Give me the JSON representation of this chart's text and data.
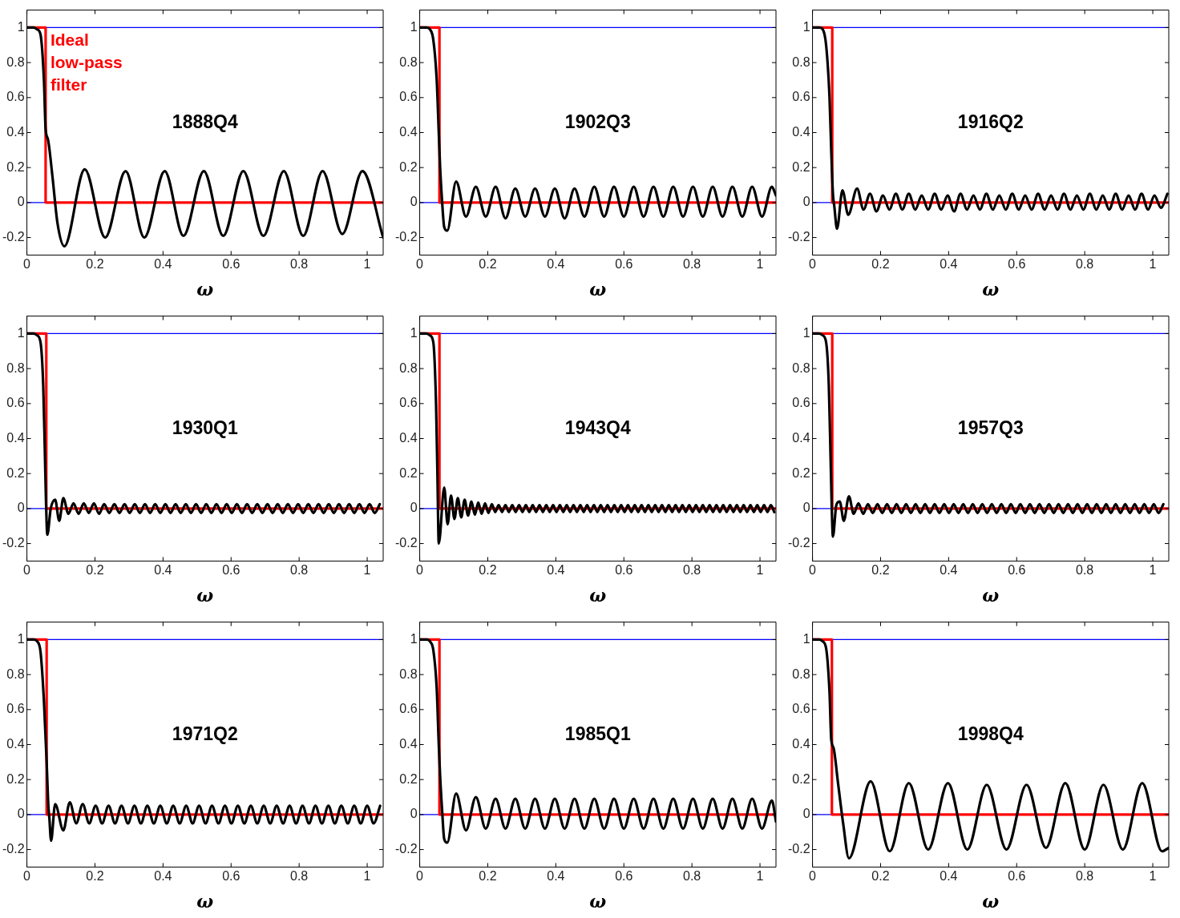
{
  "chart_data": [
    {
      "type": "line",
      "title": "1888Q4",
      "xlabel": "ω",
      "xlim": [
        0,
        1.047
      ],
      "ylim": [
        -0.3,
        1.1
      ],
      "xticks": [
        0,
        0.2,
        0.4,
        0.6,
        0.8,
        1
      ],
      "yticks": [
        -0.2,
        0,
        0.2,
        0.4,
        0.6,
        0.8,
        1
      ],
      "ref_lines": [
        {
          "axis": "y",
          "value": 0,
          "color": "#0000ff"
        },
        {
          "axis": "y",
          "value": 1,
          "color": "#0000ff"
        }
      ],
      "series": [
        {
          "color": "#000000",
          "x": [
            0,
            0.02,
            0.03,
            0.04,
            0.05,
            0.055,
            0.062,
            0.075,
            0.09,
            0.11,
            0.17,
            0.23,
            0.29,
            0.345,
            0.405,
            0.46,
            0.52,
            0.577,
            0.636,
            0.695,
            0.755,
            0.812,
            0.869,
            0.927,
            0.986,
            1.047
          ],
          "values": [
            1,
            1,
            0.99,
            0.96,
            0.7,
            0.42,
            0.36,
            0.15,
            -0.12,
            -0.25,
            0.19,
            -0.2,
            0.18,
            -0.2,
            0.18,
            -0.19,
            0.18,
            -0.19,
            0.18,
            -0.19,
            0.18,
            -0.19,
            0.18,
            -0.18,
            0.18,
            -0.2
          ]
        },
        {
          "name": "Ideal low-pass filter",
          "color": "#ff0000",
          "x": [
            0,
            0.055,
            0.055,
            1.047
          ],
          "values": [
            1,
            1,
            0,
            0
          ]
        }
      ]
    },
    {
      "type": "line",
      "title": "1902Q3",
      "xlabel": "ω",
      "xlim": [
        0,
        1.047
      ],
      "ylim": [
        -0.3,
        1.1
      ],
      "xticks": [
        0,
        0.2,
        0.4,
        0.6,
        0.8,
        1
      ],
      "yticks": [
        -0.2,
        0,
        0.2,
        0.4,
        0.6,
        0.8,
        1
      ],
      "ref_lines": [
        {
          "axis": "y",
          "value": 0,
          "color": "#0000ff"
        },
        {
          "axis": "y",
          "value": 1,
          "color": "#0000ff"
        }
      ],
      "series": [
        {
          "color": "#000000",
          "x": [
            0,
            0.02,
            0.03,
            0.04,
            0.05,
            0.056,
            0.06,
            0.066,
            0.072,
            0.081,
            0.107,
            0.136,
            0.165,
            0.194,
            0.223,
            0.252,
            0.281,
            0.31,
            0.339,
            0.368,
            0.397,
            0.426,
            0.455,
            0.484,
            0.513,
            0.542,
            0.571,
            0.6,
            0.629,
            0.658,
            0.687,
            0.716,
            0.745,
            0.774,
            0.803,
            0.832,
            0.861,
            0.89,
            0.919,
            0.948,
            0.977,
            1.006,
            1.035,
            1.047
          ],
          "values": [
            1,
            1,
            0.99,
            0.93,
            0.7,
            0.4,
            0.2,
            0,
            -0.14,
            -0.16,
            0.12,
            -0.08,
            0.09,
            -0.08,
            0.09,
            -0.09,
            0.08,
            -0.08,
            0.08,
            -0.08,
            0.08,
            -0.09,
            0.08,
            -0.08,
            0.09,
            -0.08,
            0.09,
            -0.08,
            0.09,
            -0.08,
            0.09,
            -0.08,
            0.09,
            -0.08,
            0.09,
            -0.08,
            0.09,
            -0.08,
            0.09,
            -0.08,
            0.09,
            -0.08,
            0.09,
            0.04
          ]
        },
        {
          "color": "#ff0000",
          "x": [
            0,
            0.058,
            0.058,
            1.047
          ],
          "values": [
            1,
            1,
            0,
            0
          ]
        }
      ]
    },
    {
      "type": "line",
      "title": "1916Q2",
      "xlabel": "ω",
      "xlim": [
        0,
        1.047
      ],
      "ylim": [
        -0.3,
        1.1
      ],
      "xticks": [
        0,
        0.2,
        0.4,
        0.6,
        0.8,
        1
      ],
      "yticks": [
        -0.2,
        0,
        0.2,
        0.4,
        0.6,
        0.8,
        1
      ],
      "ref_lines": [
        {
          "axis": "y",
          "value": 0,
          "color": "#0000ff"
        },
        {
          "axis": "y",
          "value": 1,
          "color": "#0000ff"
        }
      ],
      "series": [
        {
          "color": "#000000",
          "x": [
            0,
            0.02,
            0.03,
            0.04,
            0.05,
            0.055,
            0.06,
            0.064,
            0.072,
            0.088,
            0.105,
            0.131,
            0.15,
            0.169,
            0.188,
            0.207,
            0.226,
            0.245,
            0.264,
            0.283,
            0.302,
            0.321,
            0.34,
            0.359,
            0.378,
            0.397,
            0.416,
            0.435,
            0.454,
            0.473,
            0.492,
            0.511,
            0.53,
            0.549,
            0.568,
            0.587,
            0.606,
            0.625,
            0.644,
            0.663,
            0.682,
            0.701,
            0.72,
            0.739,
            0.758,
            0.777,
            0.796,
            0.815,
            0.834,
            0.853,
            0.872,
            0.891,
            0.91,
            0.929,
            0.948,
            0.967,
            0.986,
            1.005,
            1.024,
            1.043
          ],
          "values": [
            1,
            1,
            0.99,
            0.9,
            0.6,
            0.3,
            0.05,
            -0.02,
            -0.15,
            0.07,
            -0.07,
            0.08,
            -0.04,
            0.05,
            -0.05,
            0.04,
            -0.04,
            0.05,
            -0.04,
            0.05,
            -0.04,
            0.04,
            -0.04,
            0.05,
            -0.04,
            0.04,
            -0.05,
            0.05,
            -0.04,
            0.04,
            -0.04,
            0.05,
            -0.04,
            0.04,
            -0.04,
            0.05,
            -0.04,
            0.04,
            -0.04,
            0.05,
            -0.04,
            0.04,
            -0.04,
            0.05,
            -0.04,
            0.04,
            -0.04,
            0.05,
            -0.04,
            0.04,
            -0.04,
            0.05,
            -0.04,
            0.04,
            -0.04,
            0.05,
            -0.04,
            0.04,
            -0.03,
            0.05
          ]
        },
        {
          "color": "#ff0000",
          "x": [
            0,
            0.058,
            0.058,
            1.047
          ],
          "values": [
            1,
            1,
            0,
            0
          ]
        }
      ]
    },
    {
      "type": "line",
      "title": "1930Q1",
      "xlabel": "ω",
      "xlim": [
        0,
        1.047
      ],
      "ylim": [
        -0.3,
        1.1
      ],
      "xticks": [
        0,
        0.2,
        0.4,
        0.6,
        0.8,
        1
      ],
      "yticks": [
        -0.2,
        0,
        0.2,
        0.4,
        0.6,
        0.8,
        1
      ],
      "ref_lines": [
        {
          "axis": "y",
          "value": 0,
          "color": "#0000ff"
        },
        {
          "axis": "y",
          "value": 1,
          "color": "#0000ff"
        }
      ],
      "series": [
        {
          "color": "#000000",
          "x": [
            0,
            0.02,
            0.03,
            0.04,
            0.048,
            0.053,
            0.056,
            0.06,
            0.07,
            0.083,
            0.095,
            0.107,
            0.122,
            0.137,
            0.152,
            0.167,
            0.182,
            0.197,
            0.212,
            0.227,
            0.242,
            0.257,
            0.272,
            0.287,
            0.302,
            0.317,
            0.332,
            0.347,
            0.362,
            0.377,
            0.392,
            0.407,
            0.422,
            0.437,
            0.452,
            0.467,
            0.482,
            0.497,
            0.512,
            0.527,
            0.542,
            0.557,
            0.572,
            0.587,
            0.602,
            0.617,
            0.632,
            0.647,
            0.662,
            0.677,
            0.692,
            0.707,
            0.722,
            0.737,
            0.752,
            0.767,
            0.782,
            0.797,
            0.812,
            0.827,
            0.842,
            0.857,
            0.872,
            0.887,
            0.902,
            0.917,
            0.932,
            0.947,
            0.962,
            0.977,
            0.992,
            1.007,
            1.022,
            1.037
          ],
          "values": [
            1,
            1,
            0.99,
            0.95,
            0.7,
            0.3,
            0.05,
            -0.15,
            0,
            0.05,
            -0.07,
            0.06,
            -0.03,
            0.03,
            -0.03,
            0.03,
            -0.025,
            0.03,
            -0.03,
            0.025,
            -0.025,
            0.025,
            -0.025,
            0.025,
            -0.025,
            0.025,
            -0.025,
            0.025,
            -0.025,
            0.025,
            -0.025,
            0.025,
            -0.025,
            0.025,
            -0.025,
            0.025,
            -0.025,
            0.025,
            -0.025,
            0.025,
            -0.025,
            0.025,
            -0.025,
            0.025,
            -0.025,
            0.025,
            -0.025,
            0.025,
            -0.025,
            0.025,
            -0.025,
            0.025,
            -0.025,
            0.025,
            -0.025,
            0.025,
            -0.025,
            0.025,
            -0.025,
            0.025,
            -0.025,
            0.025,
            -0.025,
            0.025,
            -0.025,
            0.025,
            -0.025,
            0.025,
            -0.025,
            0.025,
            -0.025,
            0.025,
            -0.025,
            0.025
          ]
        },
        {
          "color": "#ff0000",
          "x": [
            0,
            0.057,
            0.057,
            1.047
          ],
          "values": [
            1,
            1,
            0,
            0
          ]
        }
      ]
    },
    {
      "type": "line",
      "title": "1943Q4",
      "xlabel": "ω",
      "xlim": [
        0,
        1.047
      ],
      "ylim": [
        -0.3,
        1.1
      ],
      "xticks": [
        0,
        0.2,
        0.4,
        0.6,
        0.8,
        1
      ],
      "yticks": [
        -0.2,
        0,
        0.2,
        0.4,
        0.6,
        0.8,
        1
      ],
      "ref_lines": [
        {
          "axis": "y",
          "value": 0,
          "color": "#0000ff"
        },
        {
          "axis": "y",
          "value": 1,
          "color": "#0000ff"
        }
      ],
      "series": [
        {
          "color": "#000000",
          "x": [
            0,
            0.02,
            0.03,
            0.04,
            0.048,
            0.052,
            0.056,
            0.072,
            0.082,
            0.092,
            0.102,
            0.112,
            0.122,
            0.132,
            0.142,
            0.152,
            0.162,
            0.172,
            0.182,
            0.192,
            0.202,
            0.212,
            0.222,
            0.232,
            0.242,
            0.252,
            0.262,
            0.272,
            0.282,
            0.292,
            0.302,
            0.312,
            0.322,
            0.332,
            0.342,
            0.352,
            0.362,
            0.372,
            0.382,
            0.392,
            0.402,
            0.412,
            0.422,
            0.432,
            0.442,
            0.452,
            0.462,
            0.472,
            0.482,
            0.492,
            0.502,
            0.512,
            0.522,
            0.532,
            0.542,
            0.552,
            0.562,
            0.572,
            0.582,
            0.592,
            0.602,
            0.612,
            0.622,
            0.632,
            0.642,
            0.652,
            0.662,
            0.672,
            0.682,
            0.692,
            0.702,
            0.712,
            0.722,
            0.732,
            0.742,
            0.752,
            0.762,
            0.772,
            0.782,
            0.792,
            0.802,
            0.812,
            0.822,
            0.832,
            0.842,
            0.852,
            0.862,
            0.872,
            0.882,
            0.892,
            0.902,
            0.912,
            0.922,
            0.932,
            0.942,
            0.952,
            0.962,
            0.972,
            0.982,
            0.992,
            1.002,
            1.012,
            1.022,
            1.032,
            1.042
          ],
          "values": [
            1,
            1,
            0.99,
            0.95,
            0.6,
            0.2,
            -0.2,
            0.12,
            -0.09,
            0.075,
            -0.06,
            0.06,
            -0.05,
            0.05,
            -0.04,
            0.04,
            -0.035,
            0.035,
            -0.03,
            0.03,
            -0.025,
            0.025,
            -0.02,
            0.02,
            -0.02,
            0.02,
            -0.02,
            0.02,
            -0.02,
            0.02,
            -0.02,
            0.02,
            -0.02,
            0.02,
            -0.02,
            0.02,
            -0.02,
            0.02,
            -0.02,
            0.02,
            -0.02,
            0.02,
            -0.02,
            0.02,
            -0.02,
            0.02,
            -0.02,
            0.02,
            -0.02,
            0.02,
            -0.02,
            0.02,
            -0.02,
            0.02,
            -0.02,
            0.02,
            -0.02,
            0.02,
            -0.02,
            0.02,
            -0.02,
            0.02,
            -0.02,
            0.02,
            -0.02,
            0.02,
            -0.02,
            0.02,
            -0.02,
            0.02,
            -0.02,
            0.02,
            -0.02,
            0.02,
            -0.02,
            0.02,
            -0.02,
            0.02,
            -0.02,
            0.02,
            -0.02,
            0.02,
            -0.02,
            0.02,
            -0.02,
            0.02,
            -0.02,
            0.02,
            -0.02,
            0.02,
            -0.02,
            0.02,
            -0.02,
            0.02,
            -0.02,
            0.02,
            -0.02,
            0.02,
            -0.02,
            0.02,
            -0.02,
            0.02,
            -0.02,
            0.02,
            -0.02
          ]
        },
        {
          "color": "#ff0000",
          "x": [
            0,
            0.058,
            0.058,
            1.047
          ],
          "values": [
            1,
            1,
            0,
            0
          ]
        }
      ]
    },
    {
      "type": "line",
      "title": "1957Q3",
      "xlabel": "ω",
      "xlim": [
        0,
        1.047
      ],
      "ylim": [
        -0.3,
        1.1
      ],
      "xticks": [
        0,
        0.2,
        0.4,
        0.6,
        0.8,
        1
      ],
      "yticks": [
        -0.2,
        0,
        0.2,
        0.4,
        0.6,
        0.8,
        1
      ],
      "ref_lines": [
        {
          "axis": "y",
          "value": 0,
          "color": "#0000ff"
        },
        {
          "axis": "y",
          "value": 1,
          "color": "#0000ff"
        }
      ],
      "series": [
        {
          "color": "#000000",
          "x": [
            0,
            0.02,
            0.03,
            0.04,
            0.048,
            0.053,
            0.056,
            0.06,
            0.07,
            0.08,
            0.092,
            0.107,
            0.121,
            0.135,
            0.149,
            0.163,
            0.177,
            0.191,
            0.205,
            0.219,
            0.233,
            0.247,
            0.261,
            0.275,
            0.289,
            0.303,
            0.317,
            0.331,
            0.345,
            0.359,
            0.373,
            0.387,
            0.401,
            0.415,
            0.429,
            0.443,
            0.457,
            0.471,
            0.485,
            0.499,
            0.513,
            0.527,
            0.541,
            0.555,
            0.569,
            0.583,
            0.597,
            0.611,
            0.625,
            0.639,
            0.653,
            0.667,
            0.681,
            0.695,
            0.709,
            0.723,
            0.737,
            0.751,
            0.765,
            0.779,
            0.793,
            0.807,
            0.821,
            0.835,
            0.849,
            0.863,
            0.877,
            0.891,
            0.905,
            0.919,
            0.933,
            0.947,
            0.961,
            0.975,
            0.989,
            1.003,
            1.017,
            1.031
          ],
          "values": [
            1,
            1,
            0.99,
            0.95,
            0.7,
            0.3,
            0.05,
            -0.16,
            0.02,
            0.04,
            -0.07,
            0.07,
            -0.03,
            0.03,
            -0.03,
            0.025,
            -0.025,
            0.025,
            -0.025,
            0.025,
            -0.025,
            0.025,
            -0.025,
            0.025,
            -0.025,
            0.025,
            -0.025,
            0.025,
            -0.025,
            0.025,
            -0.025,
            0.025,
            -0.025,
            0.025,
            -0.025,
            0.025,
            -0.025,
            0.025,
            -0.025,
            0.025,
            -0.025,
            0.025,
            -0.025,
            0.025,
            -0.025,
            0.025,
            -0.025,
            0.025,
            -0.025,
            0.025,
            -0.025,
            0.025,
            -0.025,
            0.025,
            -0.025,
            0.025,
            -0.025,
            0.025,
            -0.025,
            0.025,
            -0.025,
            0.025,
            -0.025,
            0.025,
            -0.025,
            0.025,
            -0.025,
            0.025,
            -0.025,
            0.025,
            -0.025,
            0.025,
            -0.025,
            0.025,
            -0.025,
            0.025,
            -0.025,
            0.025
          ]
        },
        {
          "color": "#ff0000",
          "x": [
            0,
            0.058,
            0.058,
            1.047
          ],
          "values": [
            1,
            1,
            0,
            0
          ]
        }
      ]
    },
    {
      "type": "line",
      "title": "1971Q2",
      "xlabel": "ω",
      "xlim": [
        0,
        1.047
      ],
      "ylim": [
        -0.3,
        1.1
      ],
      "xticks": [
        0,
        0.2,
        0.4,
        0.6,
        0.8,
        1
      ],
      "yticks": [
        -0.2,
        0,
        0.2,
        0.4,
        0.6,
        0.8,
        1
      ],
      "ref_lines": [
        {
          "axis": "y",
          "value": 0,
          "color": "#0000ff"
        },
        {
          "axis": "y",
          "value": 1,
          "color": "#0000ff"
        }
      ],
      "series": [
        {
          "color": "#000000",
          "x": [
            0,
            0.02,
            0.03,
            0.04,
            0.05,
            0.058,
            0.063,
            0.066,
            0.071,
            0.083,
            0.107,
            0.126,
            0.145,
            0.164,
            0.183,
            0.202,
            0.221,
            0.24,
            0.259,
            0.278,
            0.297,
            0.316,
            0.335,
            0.354,
            0.373,
            0.392,
            0.411,
            0.43,
            0.449,
            0.468,
            0.487,
            0.506,
            0.525,
            0.544,
            0.563,
            0.582,
            0.601,
            0.62,
            0.639,
            0.658,
            0.677,
            0.696,
            0.715,
            0.734,
            0.753,
            0.772,
            0.791,
            0.81,
            0.829,
            0.848,
            0.867,
            0.886,
            0.905,
            0.924,
            0.943,
            0.962,
            0.981,
            1,
            1.019,
            1.038
          ],
          "values": [
            1,
            1,
            0.99,
            0.93,
            0.65,
            0.3,
            0.05,
            -0.02,
            -0.15,
            0.06,
            -0.09,
            0.07,
            -0.05,
            0.06,
            -0.05,
            0.05,
            -0.05,
            0.05,
            -0.05,
            0.05,
            -0.05,
            0.05,
            -0.05,
            0.05,
            -0.05,
            0.05,
            -0.05,
            0.05,
            -0.05,
            0.05,
            -0.05,
            0.05,
            -0.05,
            0.05,
            -0.05,
            0.05,
            -0.05,
            0.05,
            -0.05,
            0.05,
            -0.05,
            0.05,
            -0.05,
            0.05,
            -0.05,
            0.05,
            -0.05,
            0.05,
            -0.05,
            0.05,
            -0.05,
            0.05,
            -0.05,
            0.05,
            -0.05,
            0.05,
            -0.05,
            0.05,
            -0.05,
            0.05
          ]
        },
        {
          "color": "#ff0000",
          "x": [
            0,
            0.058,
            0.058,
            1.047
          ],
          "values": [
            1,
            1,
            0,
            0
          ]
        }
      ]
    },
    {
      "type": "line",
      "title": "1985Q1",
      "xlabel": "ω",
      "xlim": [
        0,
        1.047
      ],
      "ylim": [
        -0.3,
        1.1
      ],
      "xticks": [
        0,
        0.2,
        0.4,
        0.6,
        0.8,
        1
      ],
      "yticks": [
        -0.2,
        0,
        0.2,
        0.4,
        0.6,
        0.8,
        1
      ],
      "ref_lines": [
        {
          "axis": "y",
          "value": 0,
          "color": "#0000ff"
        },
        {
          "axis": "y",
          "value": 1,
          "color": "#0000ff"
        }
      ],
      "series": [
        {
          "color": "#000000",
          "x": [
            0,
            0.02,
            0.03,
            0.04,
            0.05,
            0.056,
            0.06,
            0.066,
            0.072,
            0.081,
            0.107,
            0.136,
            0.165,
            0.194,
            0.223,
            0.252,
            0.281,
            0.31,
            0.339,
            0.368,
            0.397,
            0.426,
            0.455,
            0.484,
            0.513,
            0.542,
            0.571,
            0.6,
            0.629,
            0.658,
            0.687,
            0.716,
            0.745,
            0.774,
            0.803,
            0.832,
            0.861,
            0.89,
            0.919,
            0.948,
            0.977,
            1.006,
            1.035,
            1.047
          ],
          "values": [
            1,
            1,
            0.99,
            0.94,
            0.72,
            0.4,
            0.22,
            0.02,
            -0.14,
            -0.16,
            0.12,
            -0.09,
            0.1,
            -0.08,
            0.09,
            -0.08,
            0.09,
            -0.08,
            0.09,
            -0.08,
            0.09,
            -0.08,
            0.09,
            -0.08,
            0.09,
            -0.08,
            0.09,
            -0.08,
            0.09,
            -0.08,
            0.09,
            -0.08,
            0.09,
            -0.08,
            0.09,
            -0.08,
            0.09,
            -0.08,
            0.09,
            -0.08,
            0.09,
            -0.08,
            0.08,
            -0.04
          ]
        },
        {
          "color": "#ff0000",
          "x": [
            0,
            0.058,
            0.058,
            1.047
          ],
          "values": [
            1,
            1,
            0,
            0
          ]
        }
      ]
    },
    {
      "type": "line",
      "title": "1998Q4",
      "xlabel": "ω",
      "xlim": [
        0,
        1.047
      ],
      "ylim": [
        -0.3,
        1.1
      ],
      "xticks": [
        0,
        0.2,
        0.4,
        0.6,
        0.8,
        1
      ],
      "yticks": [
        -0.2,
        0,
        0.2,
        0.4,
        0.6,
        0.8,
        1
      ],
      "ref_lines": [
        {
          "axis": "y",
          "value": 0,
          "color": "#0000ff"
        },
        {
          "axis": "y",
          "value": 1,
          "color": "#0000ff"
        }
      ],
      "series": [
        {
          "color": "#000000",
          "x": [
            0,
            0.02,
            0.03,
            0.04,
            0.05,
            0.055,
            0.062,
            0.075,
            0.09,
            0.107,
            0.171,
            0.227,
            0.283,
            0.34,
            0.398,
            0.455,
            0.512,
            0.57,
            0.629,
            0.686,
            0.743,
            0.8,
            0.855,
            0.912,
            0.969,
            1.027,
            1.047
          ],
          "values": [
            1,
            1,
            0.99,
            0.95,
            0.7,
            0.43,
            0.38,
            0.18,
            -0.05,
            -0.25,
            0.19,
            -0.21,
            0.18,
            -0.2,
            0.18,
            -0.2,
            0.17,
            -0.2,
            0.17,
            -0.19,
            0.18,
            -0.2,
            0.17,
            -0.2,
            0.18,
            -0.21,
            -0.19
          ]
        },
        {
          "color": "#ff0000",
          "x": [
            0,
            0.057,
            0.057,
            1.047
          ],
          "values": [
            1,
            1,
            0,
            0
          ]
        }
      ]
    }
  ]
}
